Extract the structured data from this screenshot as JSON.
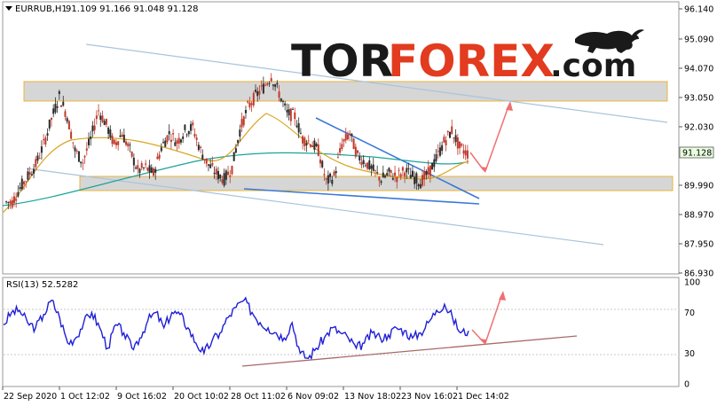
{
  "header": {
    "symbol": "EURRUB,H1",
    "ohlc": "91.109 91.166 91.048 91.128"
  },
  "logo": {
    "part1": "TOR",
    "part2": "FOREX",
    "part3": ".com"
  },
  "price_axis": {
    "ticks": [
      "96.140",
      "95.090",
      "94.070",
      "93.050",
      "92.030",
      "91.128",
      "89.990",
      "88.970",
      "87.950",
      "86.930"
    ],
    "current_price": "91.128"
  },
  "rsi": {
    "label": "RSI(13) 52.5282",
    "ticks": [
      "100",
      "70",
      "30",
      "0"
    ]
  },
  "time_axis": {
    "labels": [
      "22 Sep 2020",
      "1 Oct 12:02",
      "9 Oct 16:02",
      "20 Oct 10:02",
      "28 Oct 11:02",
      "6 Nov 09:02",
      "13 Nov 18:02",
      "23 Nov 16:02",
      "1 Dec 14:02"
    ]
  },
  "colors": {
    "bull_candle": "#2b2b2b",
    "bear_candle": "#c0392b",
    "ma_fast": "#d9a621",
    "ma_slow": "#1aa39a",
    "rsi_line": "#1f1fd6",
    "trend_blue": "#3a79d8",
    "channel_line": "#a9c4dc",
    "zone_border": "#e8b43a",
    "forecast_arrow": "#f07070",
    "rsi_support": "#a86a6a",
    "price_box": "#e8ffe0"
  },
  "chart_data": {
    "type": "candlestick",
    "price_range": [
      86.93,
      96.14
    ],
    "rsi_range": [
      0,
      100
    ],
    "last_price": 91.128,
    "rsi_value": 52.5282,
    "resistance_zone": [
      93.05,
      93.6
    ],
    "support_zone": [
      89.9,
      90.25
    ],
    "closes": [
      89.4,
      89.9,
      90.3,
      90.7,
      91.4,
      92.3,
      93.1,
      92.4,
      91.2,
      90.8,
      91.6,
      92.6,
      92.1,
      91.4,
      91.8,
      91.2,
      90.5,
      90.6,
      90.4,
      91.3,
      91.8,
      91.5,
      91.9,
      92.0,
      91.2,
      90.7,
      90.4,
      90.2,
      90.6,
      91.9,
      92.7,
      93.1,
      93.4,
      93.8,
      93.2,
      92.5,
      92.4,
      91.6,
      91.5,
      91.2,
      90.1,
      90.3,
      91.4,
      91.8,
      91.0,
      90.8,
      90.5,
      90.2,
      90.4,
      90.3,
      90.5,
      90.3,
      90.1,
      90.4,
      90.9,
      91.5,
      91.9,
      91.3,
      91.1
    ],
    "rsi_values": [
      58,
      70,
      72,
      60,
      55,
      68,
      82,
      65,
      40,
      45,
      60,
      70,
      55,
      35,
      58,
      50,
      35,
      45,
      62,
      70,
      55,
      70,
      68,
      55,
      40,
      30,
      42,
      50,
      65,
      75,
      82,
      70,
      60,
      55,
      50,
      45,
      60,
      30,
      25,
      35,
      45,
      55,
      50,
      45,
      35,
      40,
      50,
      45,
      48,
      55,
      52,
      45,
      50,
      60,
      72,
      78,
      65,
      50,
      52
    ]
  }
}
